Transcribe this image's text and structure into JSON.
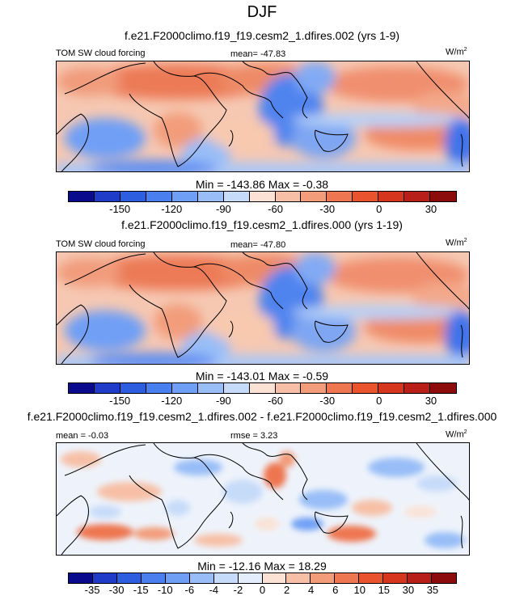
{
  "title": "DJF",
  "units": "W/m2",
  "units_base": "W/m",
  "units_sup": "2",
  "panel1": {
    "case": "f.e21.F2000climo.f19_f19.cesm2_1.dfires.002 (yrs 1-9)",
    "variable": "TOM SW cloud forcing",
    "mean": "mean= -47.83",
    "stats": "Min = -143.86 Max =  -0.38"
  },
  "panel2": {
    "case": "f.e21.F2000climo.f19_f19.cesm2_1.dfires.000 (yrs 1-19)",
    "variable": "TOM SW cloud forcing",
    "mean": "mean= -47.80",
    "stats": "Min = -143.01 Max =  -0.59"
  },
  "panel3": {
    "case": "f.e21.F2000climo.f19_f19.cesm2_1.dfires.002 - f.e21.F2000climo.f19_f19.cesm2_1.dfires.000",
    "mean": "mean =  -0.03",
    "rmse": "rmse =  3.23",
    "stats": "Min = -12.16 Max =  18.29"
  },
  "colorbar_main": {
    "labels": [
      "-150",
      "-120",
      "-90",
      "-60",
      "-30",
      "0",
      "30"
    ],
    "colors": [
      "#0a0a8c",
      "#1e3cc8",
      "#2e5ee0",
      "#4a7ff0",
      "#6f9ff5",
      "#98bdf7",
      "#c6dbf9",
      "#fbe2d5",
      "#f7c0a6",
      "#f29c7a",
      "#ee7650",
      "#e9532e",
      "#d6361e",
      "#b91f19",
      "#8c0c0c"
    ]
  },
  "colorbar_diff": {
    "labels": [
      "-35",
      "-30",
      "-15",
      "-10",
      "-6",
      "-4",
      "-2",
      "0",
      "2",
      "4",
      "6",
      "10",
      "15",
      "30",
      "35"
    ],
    "colors": [
      "#0a0a8c",
      "#1e3cc8",
      "#2e5ee0",
      "#4a7ff0",
      "#6f9ff5",
      "#98bdf7",
      "#c6dbf9",
      "#e3edfb",
      "#fbe2d5",
      "#f7c0a6",
      "#f29c7a",
      "#ee7650",
      "#e9532e",
      "#d6361e",
      "#b91f19",
      "#8c0c0c"
    ]
  }
}
